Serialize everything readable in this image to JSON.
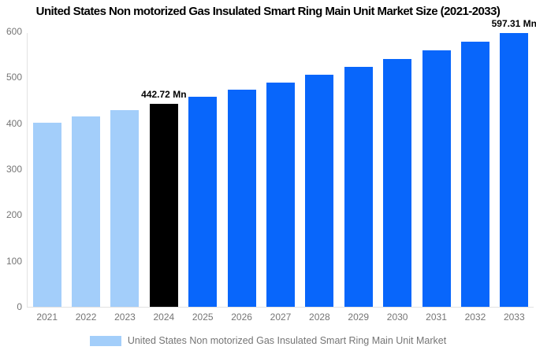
{
  "title": "United States Non motorized Gas Insulated Smart Ring Main Unit Market Size (2021-2033)",
  "legend": {
    "label": "United States Non motorized Gas Insulated Smart Ring Main Unit Market",
    "swatch_color": "#A3CEFA"
  },
  "colors": {
    "historical_bar": "#A3CEFA",
    "highlight_bar": "#000000",
    "forecast_bar": "#0866FB",
    "axis_line": "#E2E2E2",
    "tick_text": "#757575",
    "legend_text": "#757575",
    "title_text": "#000000",
    "annotation_text": "#000000",
    "background": "#FFFFFF"
  },
  "chart_data": {
    "type": "bar",
    "title": "United States Non motorized Gas Insulated Smart Ring Main Unit Market Size (2021-2033)",
    "categories": [
      "2021",
      "2022",
      "2023",
      "2024",
      "2025",
      "2026",
      "2027",
      "2028",
      "2029",
      "2030",
      "2031",
      "2032",
      "2033"
    ],
    "values": [
      400.6,
      414.2,
      428.2,
      442.72,
      457.7,
      473.2,
      489.2,
      505.8,
      522.9,
      540.6,
      558.9,
      577.8,
      597.31
    ],
    "unit": "Mn",
    "bar_colors": [
      "#A3CEFA",
      "#A3CEFA",
      "#A3CEFA",
      "#000000",
      "#0866FB",
      "#0866FB",
      "#0866FB",
      "#0866FB",
      "#0866FB",
      "#0866FB",
      "#0866FB",
      "#0866FB",
      "#0866FB"
    ],
    "annotations": [
      {
        "category": "2024",
        "label": "442.72 Mn"
      },
      {
        "category": "2033",
        "label": "597.31 Mn"
      }
    ],
    "yticks": [
      0,
      100,
      200,
      300,
      400,
      500,
      600
    ],
    "ylim": [
      0,
      600
    ],
    "xlabel": "",
    "ylabel": "",
    "grid": false,
    "legend_position": "bottom"
  }
}
